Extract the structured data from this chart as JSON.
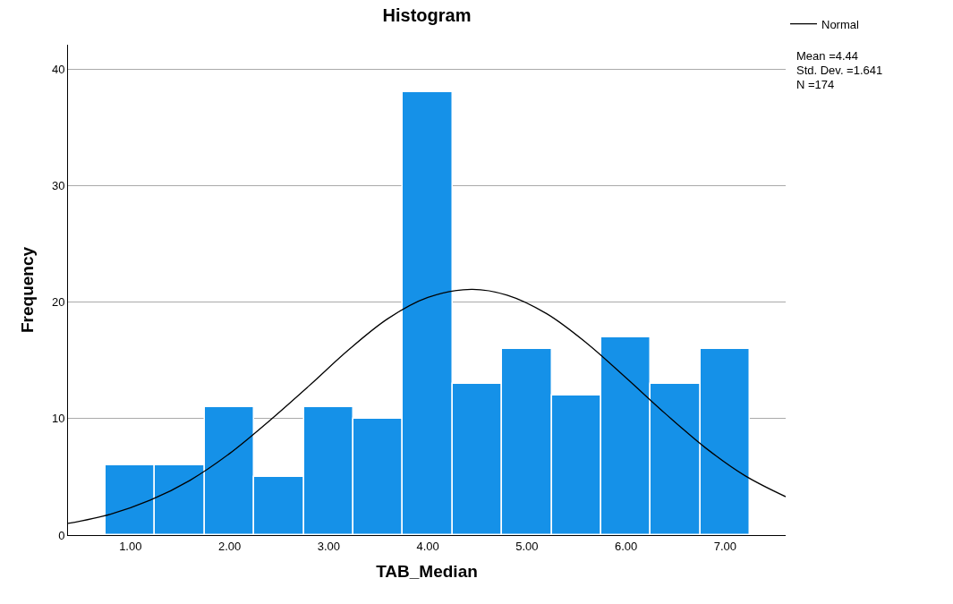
{
  "chart_data": {
    "type": "histogram",
    "title": "Histogram",
    "xlabel": "TAB_Median",
    "ylabel": "Frequency",
    "bins": [
      0.75,
      1.25,
      1.75,
      2.25,
      2.75,
      3.25,
      3.75,
      4.25,
      4.75,
      5.25,
      5.75,
      6.25,
      6.75,
      7.25
    ],
    "values": [
      6,
      6,
      11,
      5,
      11,
      10,
      38,
      13,
      16,
      12,
      17,
      13,
      16
    ],
    "color": "#1591e8",
    "series": [
      {
        "name": "Normal",
        "type": "line",
        "color": "#000000",
        "x": [
          0.37,
          0.8,
          1.2,
          1.6,
          2.0,
          2.4,
          2.8,
          3.2,
          3.6,
          4.0,
          4.44,
          4.8,
          5.2,
          5.6,
          6.0,
          6.4,
          6.8,
          7.2,
          7.61
        ],
        "values": [
          1.0,
          1.8,
          3.0,
          4.7,
          7.0,
          9.8,
          12.8,
          15.9,
          18.6,
          20.4,
          21.1,
          20.6,
          19.0,
          16.5,
          13.5,
          10.4,
          7.5,
          5.1,
          3.3
        ]
      }
    ],
    "xlim": [
      0.37,
      7.61
    ],
    "ylim": [
      0,
      42.1
    ],
    "xticks": [
      {
        "value": 1,
        "label": "1.00"
      },
      {
        "value": 2,
        "label": "2.00"
      },
      {
        "value": 3,
        "label": "3.00"
      },
      {
        "value": 4,
        "label": "4.00"
      },
      {
        "value": 5,
        "label": "5.00"
      },
      {
        "value": 6,
        "label": "6.00"
      },
      {
        "value": 7,
        "label": "7.00"
      }
    ],
    "yticks": [
      0,
      10,
      20,
      30,
      40
    ],
    "grid": "y",
    "legend": "top right",
    "annotations": [
      "Mean =4.44",
      "Std. Dev. =1.641",
      "N =174"
    ]
  }
}
